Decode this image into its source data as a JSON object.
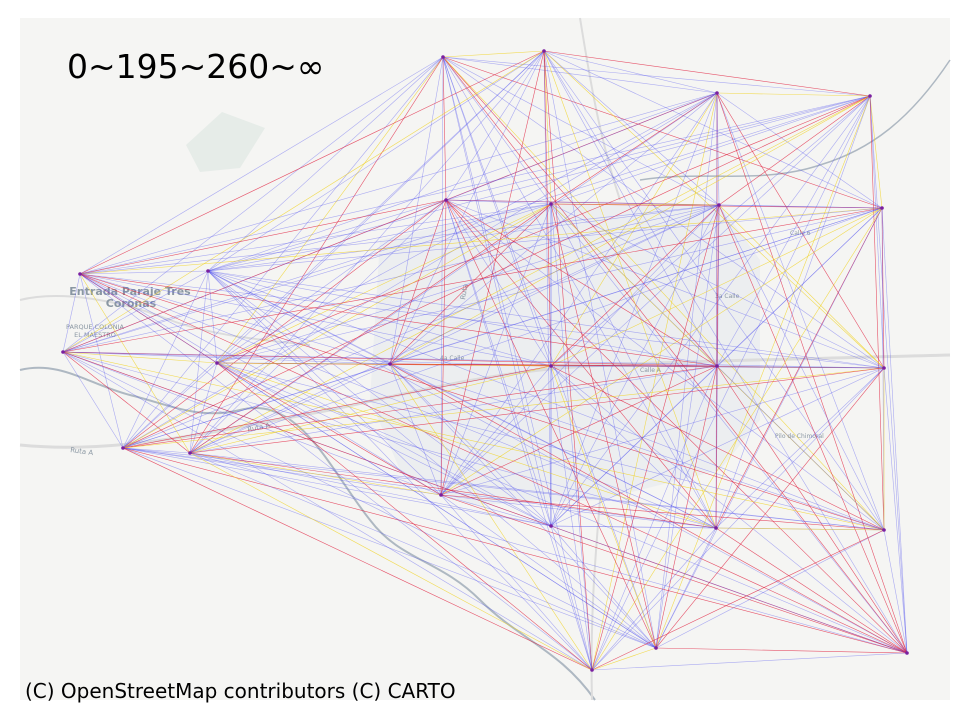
{
  "legend": "0~195~260~∞",
  "attribution": "(C) OpenStreetMap contributors (C) CARTO",
  "basemap": {
    "place_labels": [
      {
        "name": "place-entrada",
        "text": "Entrada Paraje Tres",
        "size": "large"
      },
      {
        "name": "place-coronas",
        "text": "Coronas",
        "size": "large"
      },
      {
        "name": "place-parque-colonia",
        "text": "PARQUE COLONIA",
        "size": "small"
      },
      {
        "name": "place-el-maestro",
        "text": "EL MAESTRO",
        "size": "small"
      },
      {
        "name": "road-ruta-a-west",
        "text": "Ruta A",
        "size": "small"
      },
      {
        "name": "road-ruta-a-mid",
        "text": "Ruta A",
        "size": "small"
      },
      {
        "name": "road-ruta-center",
        "text": "Ruta",
        "size": "small"
      },
      {
        "name": "road-4a-calle",
        "text": "4a Calle",
        "size": "small"
      },
      {
        "name": "road-calle-6",
        "text": "Calle 6",
        "size": "small"
      },
      {
        "name": "road-3a-calle",
        "text": "3a Calle",
        "size": "small"
      },
      {
        "name": "road-calle-a",
        "text": "Calle A",
        "size": "small"
      },
      {
        "name": "road-pilo-chimoral",
        "text": "Pilo de Chimoral",
        "size": "small"
      }
    ],
    "land_color": "#f5f5f3",
    "road_color": "#ffffff",
    "water_color": "#aeb8c2"
  },
  "network": {
    "bin_colors": {
      "low": "#4f4ff0",
      "mid": "#f0d21c",
      "high": "#e01e3c"
    },
    "node_color": "#7a1fa0"
  }
}
